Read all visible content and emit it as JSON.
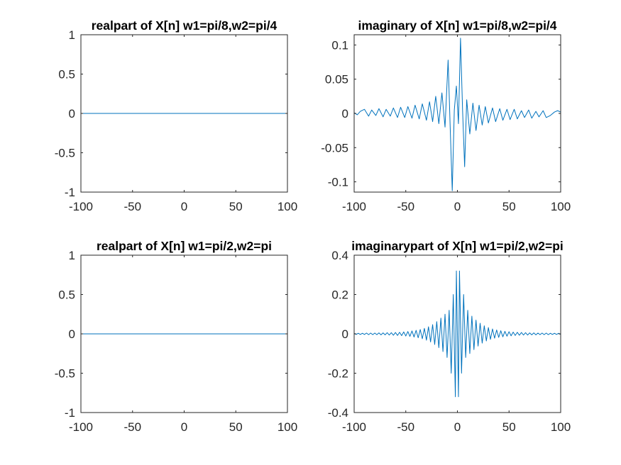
{
  "figure": {
    "background": "#ffffff",
    "line_color": "#0072bd",
    "axis_color": "#262626"
  },
  "chart_data": [
    {
      "type": "line",
      "title": "realpart of X[n] w1=pi/8,w2=pi/4",
      "xlabel": "",
      "ylabel": "",
      "xlim": [
        -100,
        100
      ],
      "ylim": [
        -1,
        1
      ],
      "xticks": [
        -100,
        -50,
        0,
        50,
        100
      ],
      "yticks": [
        -1,
        -0.5,
        0,
        0.5,
        1
      ],
      "xtick_labels": [
        "-100",
        "-50",
        "0",
        "50",
        "100"
      ],
      "ytick_labels": [
        "-1",
        "-0.5",
        "0",
        "0.5",
        "1"
      ],
      "grid": false,
      "series": [
        {
          "x": [
            -100,
            100
          ],
          "y": [
            0,
            0
          ]
        }
      ]
    },
    {
      "type": "line",
      "title": "imaginary of X[n] w1=pi/8,w2=pi/4",
      "xlabel": "",
      "ylabel": "",
      "xlim": [
        -100,
        100
      ],
      "ylim": [
        -0.115,
        0.115
      ],
      "xticks": [
        -100,
        -50,
        0,
        50,
        100
      ],
      "yticks": [
        -0.1,
        -0.05,
        0,
        0.05,
        0.1
      ],
      "xtick_labels": [
        "-100",
        "-50",
        "0",
        "50",
        "100"
      ],
      "ytick_labels": [
        "-0.1",
        "-0.05",
        "0",
        "0.05",
        "0.1"
      ],
      "grid": false,
      "series": [
        {
          "x": [
            -100,
            -97,
            -94,
            -90,
            -86,
            -83,
            -79,
            -76,
            -72,
            -69,
            -65,
            -62,
            -58,
            -55,
            -51,
            -48,
            -44,
            -41,
            -37,
            -34,
            -30,
            -27,
            -24,
            -21,
            -18,
            -15,
            -12,
            -9,
            -7,
            -5,
            -3,
            -1,
            1,
            3,
            5,
            7,
            9,
            12,
            15,
            18,
            21,
            24,
            27,
            30,
            34,
            37,
            41,
            44,
            48,
            51,
            55,
            58,
            62,
            65,
            69,
            72,
            76,
            79,
            83,
            86,
            90,
            94,
            97,
            100
          ],
          "y": [
            0.001,
            -0.002,
            0.003,
            0.006,
            -0.004,
            0.005,
            -0.003,
            0.007,
            -0.005,
            0.006,
            -0.004,
            0.008,
            -0.006,
            0.009,
            -0.006,
            0.01,
            -0.007,
            0.012,
            -0.008,
            0.014,
            -0.01,
            0.017,
            -0.012,
            0.025,
            -0.015,
            0.03,
            -0.02,
            0.078,
            -0.02,
            -0.113,
            0.005,
            0.04,
            -0.015,
            0.11,
            0.005,
            -0.078,
            0.02,
            -0.03,
            0.015,
            -0.025,
            0.012,
            -0.017,
            0.01,
            -0.014,
            0.008,
            -0.012,
            0.007,
            -0.01,
            0.006,
            -0.009,
            0.006,
            -0.008,
            0.004,
            -0.006,
            0.005,
            -0.007,
            0.003,
            -0.005,
            0.004,
            -0.006,
            -0.003,
            0.002,
            0.004,
            0.002
          ]
        }
      ]
    },
    {
      "type": "line",
      "title": "realpart of X[n] w1=pi/2,w2=pi",
      "xlabel": "",
      "ylabel": "",
      "xlim": [
        -100,
        100
      ],
      "ylim": [
        -1,
        1
      ],
      "xticks": [
        -100,
        -50,
        0,
        50,
        100
      ],
      "yticks": [
        -1,
        -0.5,
        0,
        0.5,
        1
      ],
      "xtick_labels": [
        "-100",
        "-50",
        "0",
        "50",
        "100"
      ],
      "ytick_labels": [
        "-1",
        "-0.5",
        "0",
        "0.5",
        "1"
      ],
      "grid": false,
      "series": [
        {
          "x": [
            -100,
            100
          ],
          "y": [
            0,
            0
          ]
        }
      ]
    },
    {
      "type": "line",
      "title": "imaginarypart of X[n] w1=pi/2,w2=pi",
      "xlabel": "",
      "ylabel": "",
      "xlim": [
        -100,
        100
      ],
      "ylim": [
        -0.4,
        0.4
      ],
      "xticks": [
        -100,
        -50,
        0,
        50,
        100
      ],
      "yticks": [
        -0.4,
        -0.2,
        0,
        0.2,
        0.4
      ],
      "xtick_labels": [
        "-100",
        "-50",
        "0",
        "50",
        "100"
      ],
      "ytick_labels": [
        "-0.4",
        "-0.2",
        "0",
        "0.2",
        "0.4"
      ],
      "grid": false,
      "series": [
        {
          "x": [
            -100,
            -98,
            -96,
            -94,
            -92,
            -90,
            -88,
            -86,
            -84,
            -82,
            -80,
            -78,
            -76,
            -74,
            -72,
            -70,
            -68,
            -66,
            -64,
            -62,
            -60,
            -58,
            -56,
            -54,
            -52,
            -50,
            -48,
            -46,
            -44,
            -42,
            -40,
            -38,
            -36,
            -34,
            -32,
            -30,
            -28,
            -26,
            -24,
            -22,
            -20,
            -18,
            -16,
            -14,
            -12,
            -10,
            -8,
            -6,
            -4,
            -2,
            -1,
            0,
            1,
            2,
            4,
            6,
            8,
            10,
            12,
            14,
            16,
            18,
            20,
            22,
            24,
            26,
            28,
            30,
            32,
            34,
            36,
            38,
            40,
            42,
            44,
            46,
            48,
            50,
            52,
            54,
            56,
            58,
            60,
            62,
            64,
            66,
            68,
            70,
            72,
            74,
            76,
            78,
            80,
            82,
            84,
            86,
            88,
            90,
            92,
            94,
            96,
            98,
            100
          ],
          "y": [
            0.003,
            -0.003,
            0.003,
            -0.003,
            0.003,
            -0.003,
            0.004,
            -0.004,
            0.004,
            -0.004,
            0.004,
            -0.004,
            0.005,
            -0.005,
            0.005,
            -0.005,
            0.006,
            -0.006,
            0.006,
            -0.007,
            0.007,
            -0.008,
            0.008,
            -0.009,
            0.01,
            -0.011,
            0.012,
            -0.013,
            0.015,
            -0.016,
            0.018,
            -0.02,
            0.022,
            -0.025,
            0.028,
            -0.032,
            0.036,
            -0.041,
            0.047,
            -0.054,
            0.062,
            -0.07,
            0.08,
            -0.09,
            0.1,
            -0.12,
            0.12,
            -0.2,
            0.2,
            -0.32,
            0.32,
            0,
            -0.32,
            0.32,
            -0.2,
            0.2,
            -0.12,
            0.12,
            -0.1,
            0.09,
            -0.08,
            0.07,
            -0.062,
            0.054,
            -0.047,
            0.041,
            -0.036,
            0.032,
            -0.028,
            0.025,
            -0.022,
            0.02,
            -0.018,
            0.016,
            -0.015,
            0.013,
            -0.012,
            0.011,
            -0.01,
            0.009,
            -0.008,
            0.008,
            -0.007,
            0.007,
            -0.006,
            0.006,
            -0.006,
            0.005,
            -0.005,
            0.005,
            -0.005,
            0.004,
            -0.004,
            0.004,
            -0.004,
            0.004,
            -0.004,
            0.003,
            -0.003,
            0.003,
            -0.003,
            0.003,
            -0.003
          ]
        }
      ]
    }
  ]
}
